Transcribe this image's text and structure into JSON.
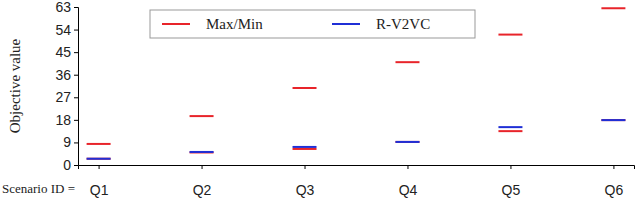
{
  "chart_data": {
    "type": "scatter",
    "marker": "hline",
    "x_label": "Scenario ID =",
    "y_label": "Objective value",
    "categories": [
      "Q1",
      "Q2",
      "Q3",
      "Q4",
      "Q5",
      "Q6"
    ],
    "series": [
      {
        "name": "Max/Min",
        "color": "#e8242a",
        "values": [
          8.4,
          19.5,
          30.7,
          41,
          52,
          62.5
        ],
        "min": [
          2.5,
          5,
          6.4,
          9.2,
          13.5,
          17.9
        ]
      },
      {
        "name": "R-V2VC",
        "color": "#1f2fd6",
        "values": [
          2.5,
          5.2,
          7.2,
          9.2,
          15.1,
          17.9
        ]
      }
    ],
    "ylim": [
      0,
      63
    ],
    "yticks": [
      0,
      9,
      18,
      27,
      36,
      45,
      54,
      63
    ],
    "grid": false,
    "legend": "upper left"
  }
}
